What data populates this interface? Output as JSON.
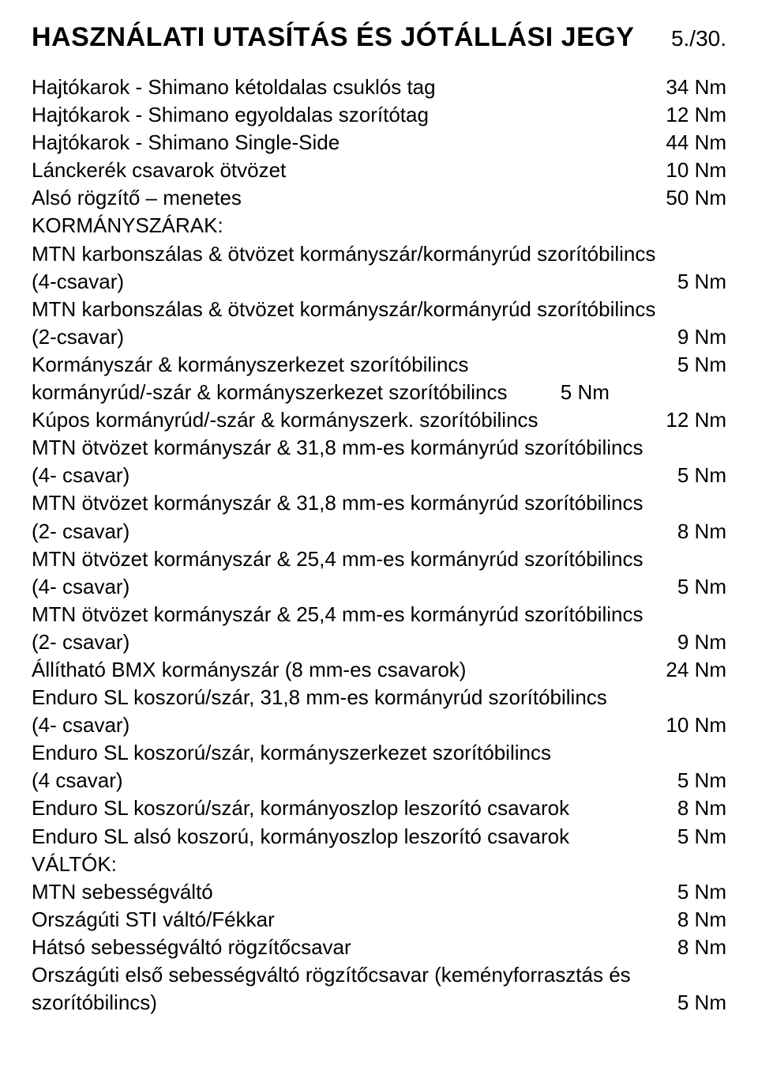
{
  "header": {
    "title": "HASZNÁLATI UTASÍTÁS ÉS JÓTÁLLÁSI JEGY",
    "page_number": "5./30."
  },
  "rows": [
    {
      "label": "Hajtókarok - Shimano kétoldalas csuklós tag",
      "value": "34 Nm"
    },
    {
      "label": "Hajtókarok - Shimano egyoldalas szorítótag",
      "value": "12 Nm"
    },
    {
      "label": "Hajtókarok - Shimano Single-Side",
      "value": "44 Nm"
    },
    {
      "label": "Lánckerék csavarok ötvözet",
      "value": "10 Nm"
    },
    {
      "label": "Alsó rögzítő – menetes",
      "value": "50 Nm"
    }
  ],
  "section1_header": "KORMÁNYSZÁRAK:",
  "section1_rows": [
    {
      "label_top": "MTN karbonszálas & ötvözet kormányszár/kormányrúd szorítóbilincs",
      "label_bottom": "(4-csavar)",
      "value": "5 Nm"
    },
    {
      "label_top": "MTN karbonszálas & ötvözet kormányszár/kormányrúd szorítóbilincs",
      "label_bottom": "(2-csavar)",
      "value": "9 Nm"
    }
  ],
  "section2_rows": [
    {
      "label": "Kormányszár & kormányszerkezet szorítóbilincs",
      "value": "5 Nm"
    }
  ],
  "inline_row": {
    "label": "kormányrúd/-szár & kormányszerkezet szorítóbilincs",
    "value": "5 Nm"
  },
  "section3_rows": [
    {
      "label": "Kúpos kormányrúd/-szár & kormányszerk. szorítóbilincs",
      "value": "12 Nm"
    }
  ],
  "section4_rows": [
    {
      "label_top": "MTN ötvözet kormányszár & 31,8 mm-es kormányrúd szorítóbilincs",
      "label_bottom": "(4- csavar)",
      "value": "5 Nm"
    },
    {
      "label_top": "MTN ötvözet kormányszár & 31,8 mm-es kormányrúd szorítóbilincs",
      "label_bottom": "(2- csavar)",
      "value": "8 Nm"
    },
    {
      "label_top": "MTN ötvözet kormányszár & 25,4 mm-es kormányrúd szorítóbilincs",
      "label_bottom": "(4- csavar)",
      "value": "5 Nm"
    },
    {
      "label_top": "MTN ötvözet kormányszár & 25,4 mm-es kormányrúd szorítóbilincs",
      "label_bottom": "(2- csavar)",
      "value": "9 Nm"
    }
  ],
  "section5_rows": [
    {
      "label": "Állítható BMX kormányszár (8 mm-es csavarok)",
      "value": "24 Nm"
    }
  ],
  "section6_rows": [
    {
      "label_top": "Enduro SL koszorú/szár, 31,8 mm-es kormányrúd szorítóbilincs",
      "label_bottom": "(4- csavar)",
      "value": "10 Nm"
    },
    {
      "label_top": "Enduro SL koszorú/szár, kormányszerkezet szorítóbilincs",
      "label_bottom": "(4 csavar)",
      "value": "5 Nm"
    }
  ],
  "section7_rows": [
    {
      "label": "Enduro SL koszorú/szár, kormányoszlop leszorító csavarok",
      "value": "8 Nm"
    },
    {
      "label": "Enduro SL alsó koszorú, kormányoszlop leszorító csavarok",
      "value": "5 Nm"
    }
  ],
  "section8_header": "VÁLTÓK:",
  "section8_rows": [
    {
      "label": "MTN sebességváltó",
      "value": "5 Nm"
    },
    {
      "label": "Országúti STI váltó/Fékkar",
      "value": "8 Nm"
    },
    {
      "label": "Hátsó sebességváltó rögzítőcsavar",
      "value": "8 Nm"
    }
  ],
  "section9_rows": [
    {
      "label_top": "Országúti első sebességváltó rögzítőcsavar (keményforrasztás és",
      "label_bottom": "szorítóbilincs)",
      "value": "5 Nm"
    }
  ]
}
